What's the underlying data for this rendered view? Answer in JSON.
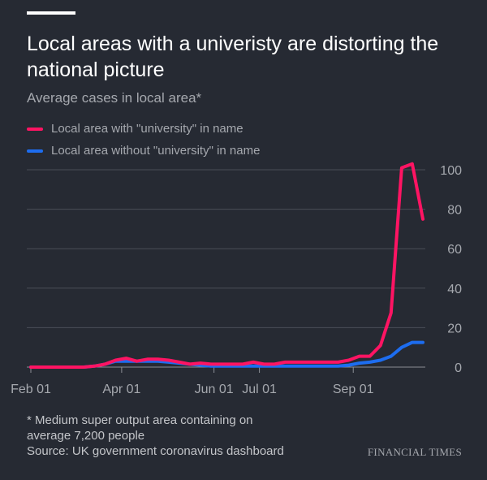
{
  "header": {
    "title": "Local areas with a univeristy are distorting the national picture",
    "subtitle": "Average cases in local area*"
  },
  "legend": [
    {
      "label": "Local area with \"university\" in name",
      "color": "#ff1463"
    },
    {
      "label": "Local area without \"university\" in name",
      "color": "#1d6df0"
    }
  ],
  "chart_data": {
    "type": "line",
    "title": "Local areas with a univeristy are distorting the national picture",
    "subtitle": "Average cases in local area*",
    "xlabel": "",
    "ylabel": "",
    "x_ticks": [
      "Feb 01",
      "Apr 01",
      "Jun 01",
      "Jul 01",
      "Sep 01"
    ],
    "y_ticks": [
      0,
      20,
      40,
      60,
      80,
      100
    ],
    "ylim": [
      0,
      105
    ],
    "grid": true,
    "y_axis_position": "right",
    "legend_position": "top-left",
    "series": [
      {
        "name": "Local area with \"university\" in name",
        "color": "#ff1463",
        "points": [
          [
            "2020-02-01",
            0
          ],
          [
            "2020-02-08",
            0
          ],
          [
            "2020-02-15",
            0
          ],
          [
            "2020-02-22",
            0
          ],
          [
            "2020-02-29",
            0
          ],
          [
            "2020-03-07",
            0
          ],
          [
            "2020-03-14",
            0.5
          ],
          [
            "2020-03-21",
            1.5
          ],
          [
            "2020-03-28",
            3.5
          ],
          [
            "2020-04-04",
            4.5
          ],
          [
            "2020-04-11",
            3
          ],
          [
            "2020-04-18",
            4
          ],
          [
            "2020-04-25",
            4
          ],
          [
            "2020-05-02",
            3.5
          ],
          [
            "2020-05-09",
            2.5
          ],
          [
            "2020-05-16",
            1.5
          ],
          [
            "2020-05-23",
            2
          ],
          [
            "2020-05-30",
            1.5
          ],
          [
            "2020-06-06",
            1.5
          ],
          [
            "2020-06-13",
            1.5
          ],
          [
            "2020-06-20",
            1.5
          ],
          [
            "2020-06-27",
            2.5
          ],
          [
            "2020-07-04",
            1.5
          ],
          [
            "2020-07-11",
            1.5
          ],
          [
            "2020-07-18",
            2.5
          ],
          [
            "2020-07-25",
            2.5
          ],
          [
            "2020-08-01",
            2.5
          ],
          [
            "2020-08-08",
            2.5
          ],
          [
            "2020-08-15",
            2.5
          ],
          [
            "2020-08-22",
            2.5
          ],
          [
            "2020-08-29",
            3.5
          ],
          [
            "2020-09-05",
            5.5
          ],
          [
            "2020-09-12",
            5.5
          ],
          [
            "2020-09-19",
            11
          ],
          [
            "2020-09-26",
            27.5
          ],
          [
            "2020-10-03",
            101
          ],
          [
            "2020-10-10",
            103
          ],
          [
            "2020-10-17",
            75
          ]
        ]
      },
      {
        "name": "Local area without \"university\" in name",
        "color": "#1d6df0",
        "points": [
          [
            "2020-02-01",
            0
          ],
          [
            "2020-02-08",
            0
          ],
          [
            "2020-02-15",
            0
          ],
          [
            "2020-02-22",
            0
          ],
          [
            "2020-02-29",
            0
          ],
          [
            "2020-03-07",
            0
          ],
          [
            "2020-03-14",
            0.5
          ],
          [
            "2020-03-21",
            1.5
          ],
          [
            "2020-03-28",
            3
          ],
          [
            "2020-04-04",
            3
          ],
          [
            "2020-04-11",
            3
          ],
          [
            "2020-04-18",
            3
          ],
          [
            "2020-04-25",
            3
          ],
          [
            "2020-05-02",
            2.5
          ],
          [
            "2020-05-09",
            2
          ],
          [
            "2020-05-16",
            1.5
          ],
          [
            "2020-05-23",
            1
          ],
          [
            "2020-05-30",
            0.5
          ],
          [
            "2020-06-06",
            0.5
          ],
          [
            "2020-06-13",
            0.5
          ],
          [
            "2020-06-20",
            0.5
          ],
          [
            "2020-06-27",
            0.5
          ],
          [
            "2020-07-04",
            0.5
          ],
          [
            "2020-07-11",
            0.5
          ],
          [
            "2020-07-18",
            0.5
          ],
          [
            "2020-07-25",
            0.5
          ],
          [
            "2020-08-01",
            0.5
          ],
          [
            "2020-08-08",
            0.5
          ],
          [
            "2020-08-15",
            0.5
          ],
          [
            "2020-08-22",
            0.5
          ],
          [
            "2020-08-29",
            1
          ],
          [
            "2020-09-05",
            2
          ],
          [
            "2020-09-12",
            2.5
          ],
          [
            "2020-09-19",
            3.5
          ],
          [
            "2020-09-26",
            5.5
          ],
          [
            "2020-10-03",
            10
          ],
          [
            "2020-10-10",
            12.5
          ],
          [
            "2020-10-17",
            12.5
          ]
        ]
      }
    ]
  },
  "footer": {
    "note_line1": "* Medium super output area containing on",
    "note_line2": "average 7,200 people",
    "source": "Source: UK government coronavirus dashboard",
    "brand": "FINANCIAL TIMES"
  },
  "colors": {
    "background": "#262a33",
    "gridline": "#4a4e57",
    "axis_text": "#a5a8ae"
  }
}
